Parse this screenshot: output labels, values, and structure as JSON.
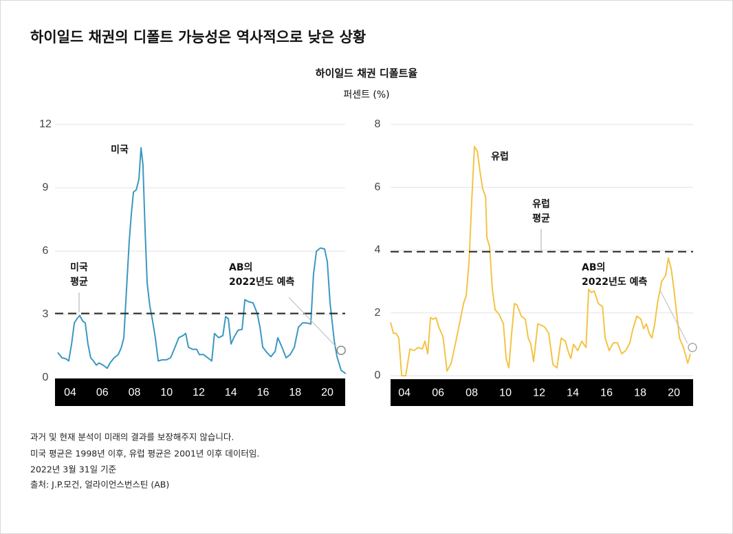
{
  "title": "하이일드 채권의 디폴트 가능성은 역사적으로 낮은 상황",
  "subtitle": "하이일드 채권 디폴트율",
  "unit": "퍼센트 (%)",
  "footnotes": [
    "과거 및 현재 분석이 미래의 결과를 보장해주지 않습니다.",
    "미국 평균은 1998년 이후, 유럽 평균은 2001년 이후 데이터임.",
    "2022년 3월 31일 기준",
    "출처: J.P.모건, 얼라이언스번스틴 (AB)"
  ],
  "chart_data": [
    {
      "type": "line",
      "series": [
        {
          "name": "미국",
          "color": "#3a97c0",
          "x": [
            2003.23,
            2003.49,
            2003.74,
            2003.91,
            2004.09,
            2004.26,
            2004.43,
            2004.6,
            2004.77,
            2004.94,
            2005.11,
            2005.28,
            2005.45,
            2005.63,
            2005.8,
            2006.05,
            2006.31,
            2006.48,
            2006.74,
            2006.99,
            2007.17,
            2007.34,
            2007.51,
            2007.68,
            2007.81,
            2007.94,
            2008.11,
            2008.28,
            2008.41,
            2008.53,
            2008.66,
            2008.79,
            2008.96,
            2009.13,
            2009.3,
            2009.48,
            2009.73,
            2009.99,
            2010.25,
            2010.5,
            2010.76,
            2011.02,
            2011.19,
            2011.36,
            2011.61,
            2011.87,
            2012.04,
            2012.3,
            2012.56,
            2012.81,
            2012.98,
            2013.24,
            2013.5,
            2013.67,
            2013.84,
            2014.01,
            2014.18,
            2014.44,
            2014.7,
            2014.87,
            2015.12,
            2015.38,
            2015.64,
            2015.81,
            2015.98,
            2016.24,
            2016.49,
            2016.75,
            2016.92,
            2017.18,
            2017.43,
            2017.69,
            2017.95,
            2018.2,
            2018.46,
            2018.72,
            2018.97,
            2019.14,
            2019.32,
            2019.57,
            2019.83,
            2020.0,
            2020.17,
            2020.43,
            2020.6,
            2020.86,
            2021.15
          ],
          "values": [
            1.2,
            0.95,
            0.9,
            0.8,
            1.6,
            2.6,
            2.8,
            2.95,
            2.7,
            2.6,
            1.6,
            0.95,
            0.8,
            0.6,
            0.7,
            0.6,
            0.45,
            0.7,
            0.95,
            1.1,
            1.4,
            1.9,
            4.2,
            6.5,
            7.8,
            8.8,
            8.9,
            9.4,
            10.9,
            10.1,
            7.1,
            4.5,
            3.4,
            2.7,
            1.9,
            0.8,
            0.85,
            0.85,
            0.95,
            1.4,
            1.9,
            2.0,
            2.1,
            1.45,
            1.35,
            1.35,
            1.1,
            1.1,
            0.95,
            0.8,
            2.1,
            1.9,
            2.0,
            2.9,
            2.8,
            1.6,
            1.9,
            2.25,
            2.3,
            3.7,
            3.6,
            3.55,
            3.05,
            2.4,
            1.45,
            1.2,
            1.0,
            1.25,
            1.9,
            1.45,
            0.95,
            1.1,
            1.45,
            2.4,
            2.6,
            2.6,
            2.55,
            4.9,
            6.0,
            6.15,
            6.1,
            5.5,
            3.55,
            1.75,
            1.0,
            0.35,
            0.2
          ]
        }
      ],
      "average": 3.05,
      "average_label": [
        "미국",
        "평균"
      ],
      "forecast": {
        "x": 2020.86,
        "value": 1.3,
        "label": [
          "AB의",
          "2022년도 예측"
        ]
      },
      "xlim": [
        2003.06,
        2021.11
      ],
      "xticks": [
        {
          "value": 2004,
          "label": "04"
        },
        {
          "value": 2006,
          "label": "06"
        },
        {
          "value": 2008,
          "label": "08"
        },
        {
          "value": 2010,
          "label": "10"
        },
        {
          "value": 2012,
          "label": "12"
        },
        {
          "value": 2014,
          "label": "14"
        },
        {
          "value": 2016,
          "label": "16"
        },
        {
          "value": 2018,
          "label": "18"
        },
        {
          "value": 2020,
          "label": "20"
        }
      ],
      "ylim": [
        0,
        12
      ],
      "yticks": [
        0,
        3,
        6,
        9,
        12
      ],
      "grid": true
    },
    {
      "type": "line",
      "series": [
        {
          "name": "유럽",
          "color": "#f3c343",
          "x": [
            2003.18,
            2003.35,
            2003.51,
            2003.67,
            2003.84,
            2004.08,
            2004.33,
            2004.57,
            2004.82,
            2005.06,
            2005.22,
            2005.39,
            2005.55,
            2005.71,
            2005.88,
            2006.04,
            2006.29,
            2006.53,
            2006.78,
            2007.02,
            2007.27,
            2007.51,
            2007.67,
            2007.84,
            2008.0,
            2008.16,
            2008.33,
            2008.49,
            2008.65,
            2008.82,
            2008.9,
            2009.06,
            2009.22,
            2009.39,
            2009.63,
            2009.88,
            2010.04,
            2010.2,
            2010.37,
            2010.53,
            2010.69,
            2010.94,
            2011.18,
            2011.35,
            2011.51,
            2011.67,
            2011.92,
            2012.16,
            2012.33,
            2012.57,
            2012.82,
            2013.06,
            2013.31,
            2013.55,
            2013.71,
            2013.88,
            2014.04,
            2014.29,
            2014.53,
            2014.78,
            2014.94,
            2015.1,
            2015.27,
            2015.51,
            2015.76,
            2015.92,
            2016.16,
            2016.41,
            2016.65,
            2016.9,
            2017.14,
            2017.39,
            2017.55,
            2017.8,
            2018.04,
            2018.2,
            2018.37,
            2018.53,
            2018.69,
            2018.86,
            2019.02,
            2019.27,
            2019.51,
            2019.67,
            2019.84,
            2020.0,
            2020.16,
            2020.33,
            2020.57,
            2020.82,
            2020.98
          ],
          "values": [
            1.7,
            1.35,
            1.35,
            1.2,
            0,
            0,
            0.85,
            0.8,
            0.9,
            0.85,
            1.1,
            0.7,
            1.85,
            1.8,
            1.85,
            1.55,
            1.25,
            0.15,
            0.4,
            1.0,
            1.65,
            2.3,
            2.55,
            3.65,
            5.6,
            7.3,
            7.15,
            6.5,
            5.95,
            5.7,
            4.4,
            4.1,
            2.75,
            2.1,
            1.95,
            1.65,
            0.55,
            0.25,
            1.35,
            2.3,
            2.25,
            1.9,
            1.8,
            1.2,
            1.0,
            0.45,
            1.65,
            1.6,
            1.55,
            1.35,
            0.35,
            0.25,
            1.2,
            1.1,
            0.8,
            0.55,
            1.0,
            0.8,
            1.1,
            0.9,
            2.75,
            2.65,
            2.7,
            2.3,
            2.2,
            1.2,
            0.8,
            1.05,
            1.05,
            0.7,
            0.8,
            1.05,
            1.45,
            1.9,
            1.8,
            1.5,
            1.65,
            1.35,
            1.2,
            1.65,
            2.3,
            3.0,
            3.2,
            3.75,
            3.4,
            2.75,
            2.0,
            1.2,
            0.9,
            0.4,
            0.7
          ]
        }
      ],
      "average": 3.95,
      "average_label": [
        "유럽",
        "평균"
      ],
      "forecast": {
        "x": 2021.1,
        "value": 0.9,
        "label": [
          "AB의",
          "2022년도 예측"
        ]
      },
      "xlim": [
        2003.18,
        2021.14
      ],
      "xticks": [
        {
          "value": 2004,
          "label": "04"
        },
        {
          "value": 2006,
          "label": "06"
        },
        {
          "value": 2008,
          "label": "08"
        },
        {
          "value": 2010,
          "label": "10"
        },
        {
          "value": 2012,
          "label": "12"
        },
        {
          "value": 2014,
          "label": "14"
        },
        {
          "value": 2016,
          "label": "16"
        },
        {
          "value": 2018,
          "label": "18"
        },
        {
          "value": 2020,
          "label": "20"
        }
      ],
      "ylim": [
        0,
        8
      ],
      "yticks": [
        0,
        2,
        4,
        6,
        8
      ],
      "grid": true
    }
  ]
}
